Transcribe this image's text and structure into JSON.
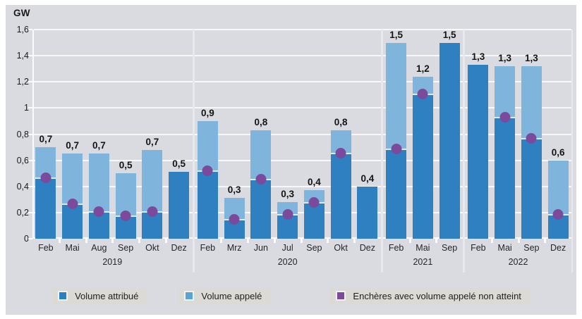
{
  "colors": {
    "panel_bg": "#d9dbe1",
    "bar_attribue": "#2e80c1",
    "bar_appele": "#7fb5dc",
    "dot_non_atteint": "#7b4a9c"
  },
  "chart_data": {
    "type": "bar",
    "title": "",
    "ylabel": "GW",
    "ylim": [
      0,
      1.6
    ],
    "grid": true,
    "yticks": [
      {
        "v": 0,
        "label": "0"
      },
      {
        "v": 0.2,
        "label": "0,2"
      },
      {
        "v": 0.4,
        "label": "0,4"
      },
      {
        "v": 0.6,
        "label": "0,6"
      },
      {
        "v": 0.8,
        "label": "0,8"
      },
      {
        "v": 1.0,
        "label": "1"
      },
      {
        "v": 1.2,
        "label": "1,2"
      },
      {
        "v": 1.4,
        "label": "1,4"
      },
      {
        "v": 1.6,
        "label": "1,6"
      }
    ],
    "legend_position": "bottom",
    "legend": [
      {
        "key": "attribue",
        "label": "Volume attribué",
        "color": "#2a80c0"
      },
      {
        "key": "appele",
        "label": "Volume appelé",
        "color": "#58a5d3"
      },
      {
        "key": "non_atteint",
        "label": "Enchères avec volume appelé non atteint",
        "color": "#7b4a9c"
      }
    ],
    "groups": [
      {
        "year": "2019",
        "bars": [
          {
            "month": "Feb",
            "appele": 0.7,
            "attribue": 0.47,
            "label": "0,7",
            "dot": true
          },
          {
            "month": "Mai",
            "appele": 0.65,
            "attribue": 0.27,
            "label": "0,7",
            "dot": true
          },
          {
            "month": "Aug",
            "appele": 0.65,
            "attribue": 0.21,
            "label": "0,7",
            "dot": true
          },
          {
            "month": "Sep",
            "appele": 0.5,
            "attribue": 0.18,
            "label": "0,5",
            "dot": true
          },
          {
            "month": "Okt",
            "appele": 0.68,
            "attribue": 0.21,
            "label": "0,7",
            "dot": true
          },
          {
            "month": "Dez",
            "appele": 0.51,
            "attribue": 0.51,
            "label": "0,5",
            "dot": false
          }
        ]
      },
      {
        "year": "2020",
        "bars": [
          {
            "month": "Feb",
            "appele": 0.9,
            "attribue": 0.52,
            "label": "0,9",
            "dot": true
          },
          {
            "month": "Mrz",
            "appele": 0.31,
            "attribue": 0.15,
            "label": "0,3",
            "dot": true
          },
          {
            "month": "Jun",
            "appele": 0.83,
            "attribue": 0.46,
            "label": "0,8",
            "dot": true
          },
          {
            "month": "Jul",
            "appele": 0.28,
            "attribue": 0.19,
            "label": "0,3",
            "dot": true
          },
          {
            "month": "Sep",
            "appele": 0.37,
            "attribue": 0.28,
            "label": "0,4",
            "dot": true
          },
          {
            "month": "Okt",
            "appele": 0.83,
            "attribue": 0.66,
            "label": "0,8",
            "dot": true
          },
          {
            "month": "Dez",
            "appele": 0.4,
            "attribue": 0.4,
            "label": "0,4",
            "dot": false
          }
        ]
      },
      {
        "year": "2021",
        "bars": [
          {
            "month": "Feb",
            "appele": 1.5,
            "attribue": 0.69,
            "label": "1,5",
            "dot": true
          },
          {
            "month": "Mai",
            "appele": 1.24,
            "attribue": 1.11,
            "label": "1,2",
            "dot": true
          },
          {
            "month": "Sep",
            "appele": 1.5,
            "attribue": 1.5,
            "label": "1,5",
            "dot": false
          }
        ]
      },
      {
        "year": "2022",
        "bars": [
          {
            "month": "Feb",
            "appele": 1.33,
            "attribue": 1.33,
            "label": "1,3",
            "dot": false
          },
          {
            "month": "Mai",
            "appele": 1.32,
            "attribue": 0.93,
            "label": "1,3",
            "dot": true
          },
          {
            "month": "Sep",
            "appele": 1.32,
            "attribue": 0.77,
            "label": "1,3",
            "dot": true
          },
          {
            "month": "Dez",
            "appele": 0.6,
            "attribue": 0.19,
            "label": "0,6",
            "dot": true
          }
        ]
      }
    ]
  }
}
